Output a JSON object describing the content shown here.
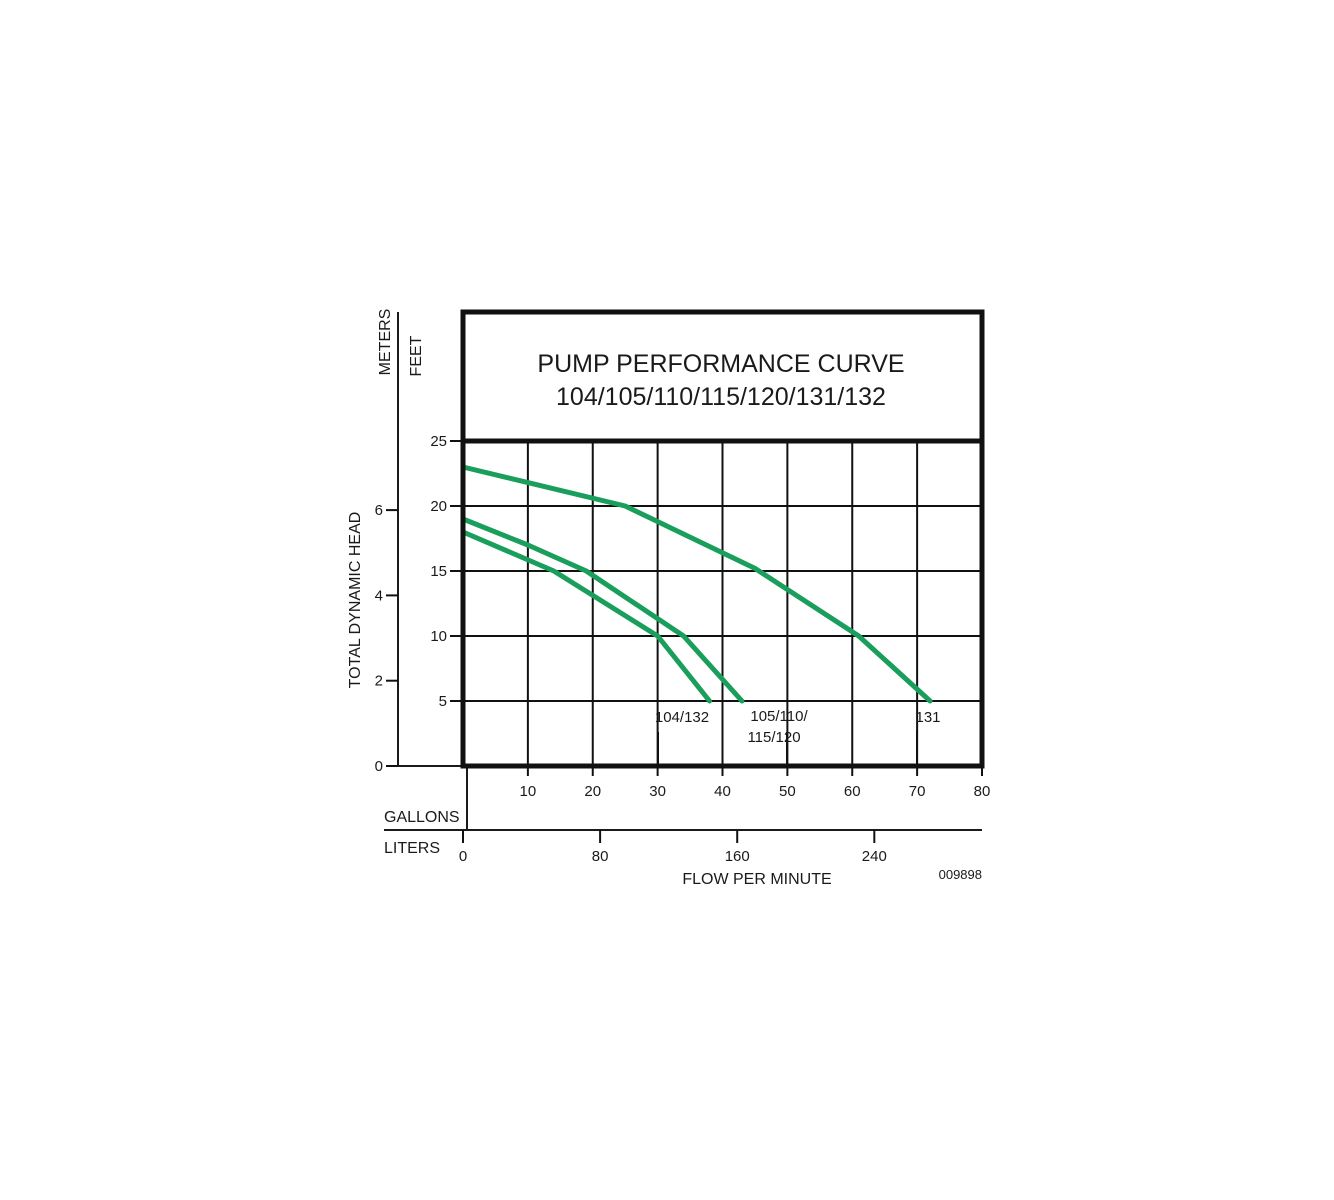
{
  "chart_data": {
    "type": "line",
    "title": "PUMP PERFORMANCE CURVE",
    "subtitle": "104/105/110/115/120/131/132",
    "ylabel": "TOTAL DYNAMIC HEAD",
    "y_left_unit": "METERS",
    "y_right_unit": "FEET",
    "x_primary_unit": "GALLONS",
    "x_secondary_unit": "LITERS",
    "xlabel": "FLOW PER MINUTE",
    "figure_code": "009898",
    "xlim": [
      0,
      80
    ],
    "ylim": [
      0,
      25
    ],
    "grid": true,
    "feet_ticks": [
      "5",
      "10",
      "15",
      "20",
      "25"
    ],
    "meter_ticks": [
      "0",
      "2",
      "4",
      "6"
    ],
    "gallon_ticks": [
      "10",
      "20",
      "30",
      "40",
      "50",
      "60",
      "70",
      "80"
    ],
    "liter_ticks": [
      "0",
      "80",
      "160",
      "240"
    ],
    "series_color": "#1a9e5c",
    "series": [
      {
        "name": "131",
        "x": [
          0,
          10,
          25,
          45,
          61,
          72
        ],
        "y": [
          23,
          21.8,
          20,
          15.2,
          10,
          5
        ]
      },
      {
        "name": "105/110/115/120",
        "x": [
          0,
          10,
          19,
          34,
          43
        ],
        "y": [
          19,
          17,
          15,
          10,
          5
        ]
      },
      {
        "name": "104/132",
        "x": [
          0,
          14,
          30,
          38
        ],
        "y": [
          18,
          15,
          10,
          5
        ]
      }
    ]
  }
}
